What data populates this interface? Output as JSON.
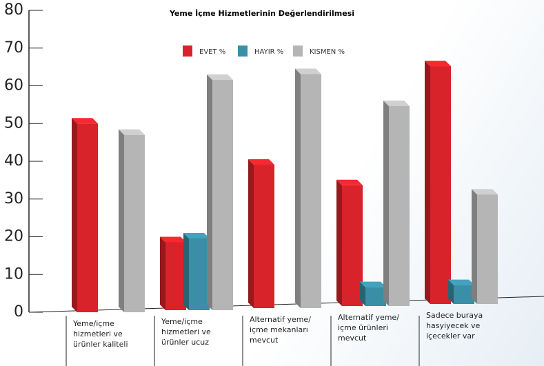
{
  "chart_data": {
    "type": "bar3d",
    "title": "Yeme İçme Hizmetlerinin Değerlendirilmesi",
    "categories": [
      "Yeme/içme hizmetleri ve ürünler kaliteli",
      "Yeme/içme hizmetleri ve ürünler ucuz",
      "Alternatif yeme/ içme mekanları mevcut",
      "Alternatif yeme/ içme ürünleri mevcut",
      "Sadece buraya hasyiyecek ve içecekler var"
    ],
    "series": [
      {
        "name": "EVET %",
        "color": "#d8232a",
        "values": [
          50,
          18,
          38,
          32,
          63
        ]
      },
      {
        "name": "HAYIR %",
        "color": "#3a8ea5",
        "values": [
          null,
          19,
          null,
          5,
          5
        ]
      },
      {
        "name": "KISMEN %",
        "color": "#b5b5b5",
        "values": [
          47,
          61,
          62,
          53,
          29
        ]
      }
    ],
    "ylim": [
      0,
      80
    ],
    "yticks": [
      0,
      10,
      20,
      30,
      40,
      50,
      60,
      70,
      80
    ]
  }
}
